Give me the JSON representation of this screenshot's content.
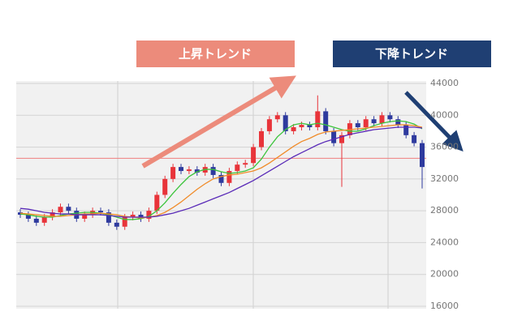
{
  "chart_data": {
    "type": "candlestick",
    "annotations": [
      "上昇トレンド",
      "下降トレンド"
    ],
    "annotation_colors": [
      "#ec8b7b",
      "#1f3f73"
    ],
    "up_color": "#e8343a",
    "down_color": "#2e3a9e",
    "open": [
      27800,
      27500,
      27000,
      26500,
      27200,
      27800,
      28500,
      28000,
      27000,
      27500,
      28000,
      27800,
      26500,
      26000,
      27200,
      27500,
      27000,
      28000,
      30000,
      32000,
      33500,
      33000,
      33200,
      32800,
      33500,
      32500,
      31500,
      33000,
      33800,
      34000,
      36000,
      38000,
      39500,
      40000,
      38000,
      38500,
      38800,
      38500,
      40500,
      38000,
      36500,
      37500,
      39000,
      38500,
      39500,
      39000,
      40000,
      39500,
      38800,
      37500,
      36500
    ],
    "high": [
      28200,
      27900,
      27400,
      27600,
      28200,
      28900,
      28900,
      28400,
      27900,
      28400,
      28400,
      28200,
      26900,
      27600,
      27900,
      27900,
      28400,
      30400,
      32400,
      33900,
      33900,
      33600,
      33600,
      33900,
      33900,
      32900,
      33400,
      34200,
      34400,
      36400,
      38400,
      39900,
      40400,
      40400,
      38900,
      39200,
      39200,
      42500,
      40900,
      38400,
      37900,
      39400,
      39400,
      39900,
      39900,
      40400,
      40400,
      39900,
      39200,
      37900,
      36900
    ],
    "low": [
      27100,
      26600,
      26100,
      26100,
      26800,
      27400,
      27600,
      26600,
      26600,
      27100,
      27400,
      26100,
      25600,
      25600,
      26800,
      26600,
      26600,
      27600,
      29600,
      31600,
      32600,
      32600,
      32400,
      32400,
      32100,
      31100,
      31100,
      32600,
      33400,
      33600,
      35600,
      37600,
      39100,
      37600,
      37600,
      38100,
      38100,
      38100,
      37600,
      36100,
      31000,
      37100,
      38100,
      38100,
      38600,
      38600,
      39100,
      38400,
      37100,
      36100,
      30800
    ],
    "close": [
      27500,
      27000,
      26500,
      27200,
      27800,
      28500,
      28000,
      27000,
      27500,
      28000,
      27800,
      26500,
      26000,
      27200,
      27500,
      27000,
      28000,
      30000,
      32000,
      33500,
      33000,
      33200,
      32800,
      33500,
      32500,
      31500,
      33000,
      33800,
      34000,
      36000,
      38000,
      39500,
      40000,
      38000,
      38500,
      38800,
      38500,
      40500,
      38000,
      36500,
      37500,
      39000,
      38500,
      39500,
      39000,
      40000,
      39500,
      38800,
      37500,
      36500,
      33500
    ],
    "series": [
      {
        "color": "#3cc43c",
        "values": [
          27600,
          27500,
          27300,
          27200,
          27200,
          27400,
          27600,
          27700,
          27800,
          27800,
          27700,
          27500,
          27200,
          26900,
          26900,
          27000,
          27300,
          28000,
          29000,
          30200,
          31300,
          32300,
          32900,
          33200,
          33200,
          32900,
          32700,
          32800,
          33000,
          33400,
          34500,
          36000,
          37300,
          38200,
          38800,
          39000,
          38800,
          39000,
          38800,
          38500,
          38200,
          38000,
          38000,
          38300,
          38700,
          39000,
          39200,
          39300,
          39200,
          38900,
          38300
        ]
      },
      {
        "color": "#f08c2a",
        "values": [
          27700,
          27600,
          27500,
          27400,
          27300,
          27300,
          27400,
          27500,
          27600,
          27600,
          27700,
          27600,
          27500,
          27300,
          27200,
          27100,
          27200,
          27400,
          27800,
          28400,
          29100,
          29900,
          30700,
          31400,
          32000,
          32300,
          32500,
          32600,
          32800,
          33000,
          33400,
          34000,
          34700,
          35400,
          36100,
          36700,
          37100,
          37600,
          37900,
          38000,
          38100,
          38200,
          38300,
          38400,
          38500,
          38600,
          38700,
          38800,
          38800,
          38700,
          38500
        ]
      },
      {
        "color": "#5a2bb8",
        "values": [
          28300,
          28200,
          28000,
          27800,
          27700,
          27600,
          27600,
          27500,
          27500,
          27500,
          27500,
          27400,
          27300,
          27200,
          27200,
          27200,
          27200,
          27300,
          27500,
          27700,
          28000,
          28300,
          28700,
          29100,
          29500,
          29900,
          30300,
          30800,
          31300,
          31800,
          32400,
          33000,
          33600,
          34200,
          34800,
          35300,
          35800,
          36300,
          36700,
          37000,
          37300,
          37600,
          37800,
          38000,
          38200,
          38300,
          38400,
          38500,
          38500,
          38500,
          38400
        ]
      }
    ],
    "reference_line": 34600,
    "reference_color": "#f08080",
    "ylim": [
      16000,
      44000
    ],
    "yticks": [
      16000,
      20000,
      24000,
      28000,
      32000,
      36000,
      40000,
      44000
    ],
    "grid": true
  }
}
